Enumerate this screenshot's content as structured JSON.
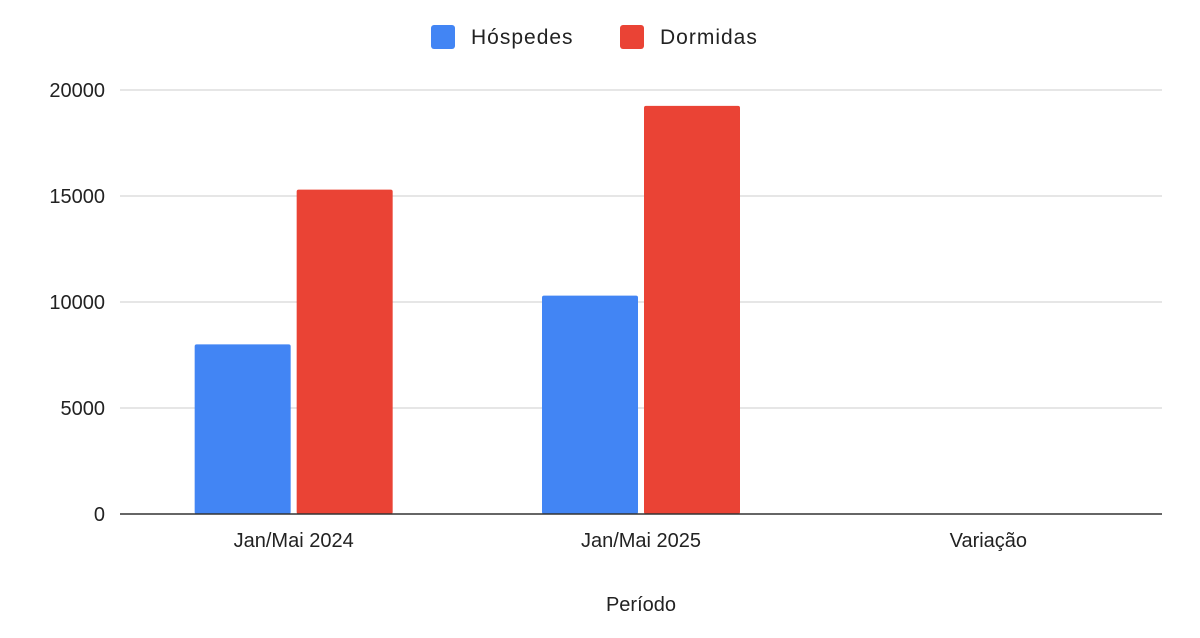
{
  "chart_data": {
    "type": "bar",
    "categories": [
      "Jan/Mai 2024",
      "Jan/Mai 2025",
      "Variação"
    ],
    "series": [
      {
        "name": "Hóspedes",
        "color": "#4285f4",
        "values": [
          8000,
          10300,
          0
        ]
      },
      {
        "name": "Dormidas",
        "color": "#ea4335",
        "values": [
          15300,
          19250,
          0
        ]
      }
    ],
    "xlabel": "Período",
    "ylabel": "",
    "ylim": [
      0,
      20000
    ],
    "yticks": [
      0,
      5000,
      10000,
      15000,
      20000
    ],
    "grid": true,
    "legend_position": "top-center"
  }
}
